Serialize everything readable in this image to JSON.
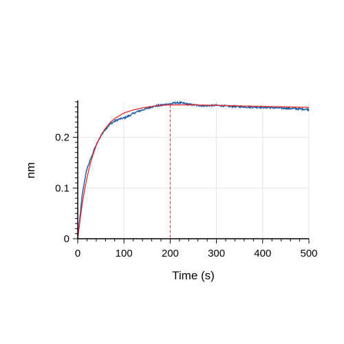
{
  "chart_data": {
    "type": "line",
    "title": "",
    "xlabel": "Time (s)",
    "ylabel": "nm",
    "xlim": [
      0,
      500
    ],
    "ylim": [
      0,
      0.27
    ],
    "x_ticks": [
      0,
      100,
      200,
      300,
      400,
      500
    ],
    "x_tick_labels": [
      "0",
      "100",
      "200",
      "300",
      "400",
      "500"
    ],
    "y_ticks": [
      0,
      0.1,
      0.2
    ],
    "y_tick_labels": [
      "0",
      "0.1",
      "0.2"
    ],
    "grid": true,
    "legend": "none",
    "marker_line": {
      "x": 200,
      "style": "dashed",
      "color": "#e8262a"
    },
    "series": [
      {
        "style": "noisy-data",
        "color": "#1f5fa8",
        "x": [
          0,
          2,
          5,
          10,
          15,
          20,
          25,
          30,
          35,
          40,
          50,
          60,
          70,
          80,
          90,
          100,
          110,
          120,
          130,
          140,
          150,
          160,
          170,
          180,
          190,
          200,
          210,
          220,
          230,
          240,
          250,
          270,
          300,
          330,
          360,
          400,
          430,
          460,
          500
        ],
        "y": [
          0.0,
          0.018,
          0.045,
          0.088,
          0.116,
          0.138,
          0.15,
          0.162,
          0.175,
          0.185,
          0.203,
          0.216,
          0.226,
          0.232,
          0.236,
          0.238,
          0.242,
          0.247,
          0.251,
          0.254,
          0.257,
          0.26,
          0.262,
          0.263,
          0.265,
          0.266,
          0.268,
          0.268,
          0.267,
          0.265,
          0.264,
          0.262,
          0.263,
          0.261,
          0.26,
          0.259,
          0.258,
          0.257,
          0.255
        ]
      },
      {
        "style": "fit",
        "color": "#e8262a",
        "x": [
          0,
          5,
          10,
          15,
          20,
          25,
          30,
          40,
          50,
          60,
          70,
          80,
          100,
          120,
          140,
          160,
          180,
          200,
          250,
          300,
          400,
          500
        ],
        "y": [
          0.0,
          0.037,
          0.07,
          0.097,
          0.12,
          0.14,
          0.157,
          0.184,
          0.204,
          0.218,
          0.229,
          0.237,
          0.248,
          0.254,
          0.258,
          0.261,
          0.263,
          0.264,
          0.264,
          0.263,
          0.261,
          0.259
        ]
      }
    ]
  }
}
